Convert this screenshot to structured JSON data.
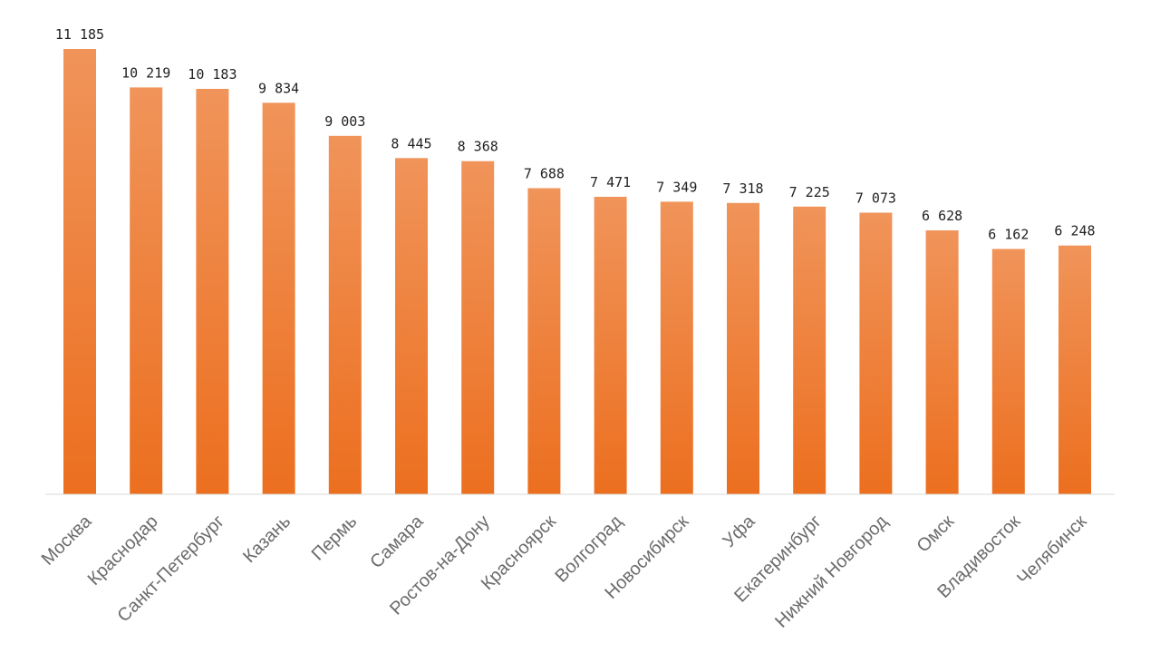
{
  "chart_data": {
    "type": "bar",
    "categories": [
      "Москва",
      "Краснодар",
      "Санкт-Петербург",
      "Казань",
      "Пермь",
      "Самара",
      "Ростов-на-Дону",
      "Красноярск",
      "Волгоград",
      "Новосибирск",
      "Уфа",
      "Екатеринбург",
      "Нижний Новгород",
      "Омск",
      "Владивосток",
      "Челябинск"
    ],
    "values": [
      11185,
      10219,
      10183,
      9834,
      9003,
      8445,
      8368,
      7688,
      7471,
      7349,
      7318,
      7225,
      7073,
      6628,
      6162,
      6248
    ],
    "value_labels": [
      "11 185",
      "10 219",
      "10 183",
      "9 834",
      "9 003",
      "8  445",
      "8 368",
      "7 688",
      "7 471",
      "7 349",
      "7 318",
      "7 225",
      "7 073",
      "6 628",
      "6 162",
      "6 248"
    ],
    "ylim": [
      0,
      11185
    ],
    "grid": false,
    "legend": "none",
    "colors": {
      "bar_top": "#f0945a",
      "bar_bottom": "#ec6f1f",
      "axis": "#d9d9d9",
      "label": "#6b6b6b",
      "value_label": "#222222"
    }
  }
}
